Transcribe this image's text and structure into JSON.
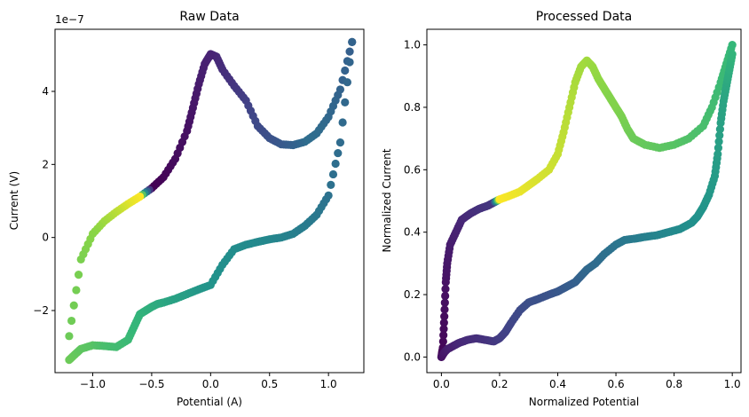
{
  "chart_data": [
    {
      "type": "scatter",
      "title": "Raw Data",
      "xlabel": "Potential (A)",
      "ylabel": "Current (V)",
      "offset_text": "1e−7",
      "y_scale_factor": 1e-07,
      "xlim": [
        -1.32,
        1.3
      ],
      "ylim": [
        -3.7,
        5.7
      ],
      "xticks": [
        -1.0,
        -0.5,
        0.0,
        0.5,
        1.0
      ],
      "xtick_labels": [
        "−1.0",
        "−0.5",
        "0.0",
        "0.5",
        "1.0"
      ],
      "yticks": [
        -2,
        0,
        2,
        4
      ],
      "ytick_labels": [
        "−2",
        "0",
        "2",
        "4"
      ],
      "colormap": "viridis",
      "grid": false,
      "legend": "none",
      "segments": [
        {
          "x": [
            1.2,
            1.1,
            1.0,
            0.9,
            0.8,
            0.7,
            0.6,
            0.5,
            0.4,
            0.3,
            0.2,
            0.1,
            0.05,
            0.0,
            -0.05,
            -0.1,
            -0.15,
            -0.2,
            -0.3,
            -0.4,
            -0.5,
            -0.6,
            -0.7,
            -0.8,
            -0.9,
            -1.0,
            -1.1,
            -1.2
          ],
          "y": [
            5.35,
            4.05,
            3.3,
            2.85,
            2.62,
            2.53,
            2.55,
            2.72,
            3.05,
            3.75,
            4.15,
            4.6,
            4.95,
            5.02,
            4.75,
            4.2,
            3.55,
            2.92,
            2.15,
            1.65,
            1.35,
            1.12,
            0.92,
            0.7,
            0.45,
            0.1,
            -0.6,
            -2.7
          ],
          "c": [
            0.38,
            0.4,
            0.42,
            0.44,
            0.45,
            0.4,
            0.36,
            0.32,
            0.28,
            0.24,
            0.2,
            0.17,
            0.15,
            0.13,
            0.12,
            0.1,
            0.08,
            0.06,
            0.04,
            0.02,
            0.0,
            1.0,
            0.97,
            0.93,
            0.9,
            0.87,
            0.85,
            0.83
          ]
        },
        {
          "x": [
            -1.2,
            -1.15,
            -1.1,
            -1.0,
            -0.9,
            -0.8,
            -0.7,
            -0.65,
            -0.6,
            -0.55,
            -0.5,
            -0.45,
            -0.4,
            -0.3,
            -0.2,
            -0.1,
            0.0,
            0.1,
            0.2,
            0.3,
            0.4,
            0.5,
            0.6,
            0.7,
            0.8,
            0.9,
            1.0,
            1.1,
            1.2
          ],
          "y": [
            -3.35,
            -3.2,
            -3.05,
            -2.95,
            -2.97,
            -3.0,
            -2.8,
            -2.45,
            -2.1,
            -2.0,
            -1.9,
            -1.82,
            -1.78,
            -1.68,
            -1.55,
            -1.42,
            -1.3,
            -0.75,
            -0.32,
            -0.2,
            -0.12,
            -0.05,
            0.0,
            0.1,
            0.32,
            0.62,
            1.15,
            2.6,
            5.35
          ],
          "c": [
            0.83,
            0.82,
            0.81,
            0.8,
            0.78,
            0.77,
            0.76,
            0.75,
            0.74,
            0.73,
            0.72,
            0.71,
            0.7,
            0.68,
            0.67,
            0.65,
            0.64,
            0.62,
            0.61,
            0.6,
            0.59,
            0.58,
            0.56,
            0.54,
            0.52,
            0.5,
            0.47,
            0.44,
            0.4
          ]
        }
      ]
    },
    {
      "type": "scatter",
      "title": "Processed Data",
      "xlabel": "Normalized Potential",
      "ylabel": "Normalized Current",
      "xlim": [
        -0.05,
        1.03
      ],
      "ylim": [
        -0.05,
        1.05
      ],
      "xticks": [
        0.0,
        0.2,
        0.4,
        0.6,
        0.8,
        1.0
      ],
      "xtick_labels": [
        "0.0",
        "0.2",
        "0.4",
        "0.6",
        "0.8",
        "1.0"
      ],
      "yticks": [
        0.0,
        0.2,
        0.4,
        0.6,
        0.8,
        1.0
      ],
      "ytick_labels": [
        "0.0",
        "0.2",
        "0.4",
        "0.6",
        "0.8",
        "1.0"
      ],
      "colormap": "viridis",
      "grid": false,
      "legend": "none",
      "segments": [
        {
          "x": [
            0.0,
            0.005,
            0.01,
            0.015,
            0.02,
            0.03,
            0.05,
            0.07,
            0.1,
            0.13,
            0.16,
            0.18,
            0.2,
            0.23,
            0.27,
            0.3,
            0.33,
            0.37,
            0.4,
            0.42,
            0.44,
            0.46,
            0.48,
            0.5,
            0.52,
            0.54,
            0.56,
            0.58,
            0.6,
            0.62,
            0.64,
            0.66,
            0.7,
            0.75,
            0.8,
            0.85,
            0.9,
            0.93,
            0.96,
            0.98,
            1.0
          ],
          "y": [
            0.0,
            0.03,
            0.13,
            0.24,
            0.3,
            0.36,
            0.4,
            0.44,
            0.46,
            0.475,
            0.485,
            0.495,
            0.505,
            0.515,
            0.53,
            0.55,
            0.57,
            0.6,
            0.65,
            0.72,
            0.8,
            0.88,
            0.93,
            0.95,
            0.93,
            0.89,
            0.86,
            0.83,
            0.8,
            0.77,
            0.73,
            0.7,
            0.68,
            0.67,
            0.68,
            0.7,
            0.74,
            0.8,
            0.88,
            0.94,
            1.0
          ],
          "c": [
            0.0,
            0.02,
            0.04,
            0.06,
            0.08,
            0.1,
            0.12,
            0.14,
            0.16,
            0.18,
            0.19,
            0.2,
            1.0,
            0.99,
            0.98,
            0.97,
            0.96,
            0.95,
            0.94,
            0.93,
            0.92,
            0.91,
            0.9,
            0.9,
            0.89,
            0.88,
            0.87,
            0.86,
            0.86,
            0.85,
            0.84,
            0.83,
            0.82,
            0.81,
            0.8,
            0.79,
            0.78,
            0.77,
            0.76,
            0.76,
            0.75
          ]
        },
        {
          "x": [
            0.0,
            0.01,
            0.02,
            0.04,
            0.06,
            0.09,
            0.12,
            0.15,
            0.18,
            0.2,
            0.22,
            0.24,
            0.27,
            0.3,
            0.33,
            0.37,
            0.4,
            0.43,
            0.46,
            0.48,
            0.5,
            0.53,
            0.56,
            0.6,
            0.63,
            0.67,
            0.7,
            0.74,
            0.78,
            0.82,
            0.86,
            0.88,
            0.9,
            0.92,
            0.94,
            0.95,
            0.96,
            0.97,
            0.98,
            0.99,
            1.0
          ],
          "y": [
            0.0,
            0.015,
            0.025,
            0.035,
            0.045,
            0.055,
            0.06,
            0.055,
            0.05,
            0.06,
            0.08,
            0.11,
            0.15,
            0.175,
            0.185,
            0.2,
            0.21,
            0.225,
            0.24,
            0.26,
            0.28,
            0.3,
            0.33,
            0.36,
            0.375,
            0.38,
            0.385,
            0.39,
            0.4,
            0.41,
            0.43,
            0.45,
            0.48,
            0.52,
            0.58,
            0.65,
            0.75,
            0.82,
            0.87,
            0.92,
            0.97
          ],
          "c": [
            0.06,
            0.08,
            0.1,
            0.12,
            0.14,
            0.16,
            0.17,
            0.18,
            0.2,
            0.22,
            0.24,
            0.26,
            0.28,
            0.3,
            0.31,
            0.32,
            0.34,
            0.36,
            0.38,
            0.4,
            0.42,
            0.44,
            0.46,
            0.48,
            0.5,
            0.52,
            0.54,
            0.56,
            0.58,
            0.6,
            0.62,
            0.63,
            0.64,
            0.65,
            0.66,
            0.67,
            0.68,
            0.69,
            0.7,
            0.72,
            0.74
          ]
        }
      ]
    }
  ]
}
